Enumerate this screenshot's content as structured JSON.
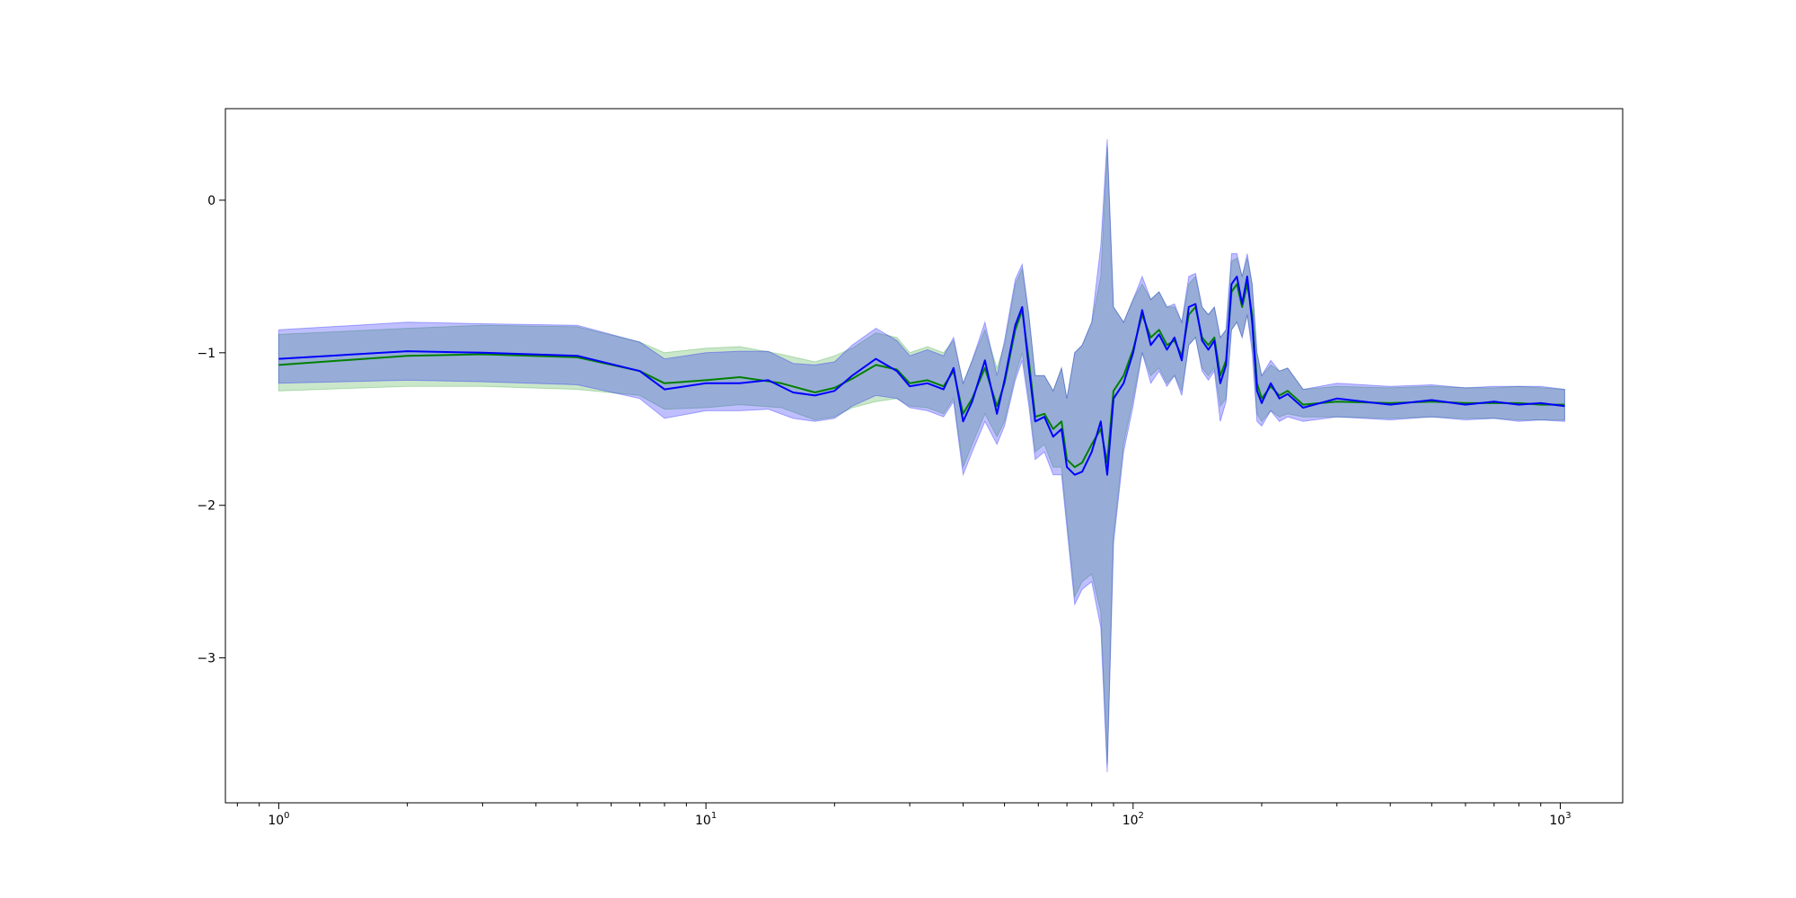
{
  "chart_data": {
    "type": "line",
    "title": "",
    "xlabel": "",
    "ylabel": "",
    "xscale": "log",
    "xlim": [
      0.75,
      1400
    ],
    "ylim": [
      -3.95,
      0.6
    ],
    "grid": false,
    "legend": "none",
    "x_ticks": [
      {
        "value": 1,
        "base": "10",
        "exp": "0"
      },
      {
        "value": 10,
        "base": "10",
        "exp": "1"
      },
      {
        "value": 100,
        "base": "10",
        "exp": "2"
      },
      {
        "value": 1000,
        "base": "10",
        "exp": "3"
      }
    ],
    "y_ticks": [
      {
        "value": 0,
        "label": "0"
      },
      {
        "value": -1,
        "label": "−1"
      },
      {
        "value": -2,
        "label": "−2"
      },
      {
        "value": -3,
        "label": "−3"
      }
    ],
    "series": [
      {
        "color": "#008000",
        "band_color": "#2ca02c",
        "points": [
          [
            1,
            -1.08,
            -1.25,
            -0.88
          ],
          [
            2,
            -1.02,
            -1.22,
            -0.84
          ],
          [
            3,
            -1.01,
            -1.22,
            -0.82
          ],
          [
            5,
            -1.03,
            -1.24,
            -0.83
          ],
          [
            7,
            -1.12,
            -1.28,
            -0.93
          ],
          [
            8,
            -1.2,
            -1.37,
            -1.0
          ],
          [
            10,
            -1.18,
            -1.36,
            -0.97
          ],
          [
            12,
            -1.16,
            -1.34,
            -0.96
          ],
          [
            15,
            -1.2,
            -1.36,
            -1.01
          ],
          [
            18,
            -1.26,
            -1.44,
            -1.06
          ],
          [
            20,
            -1.23,
            -1.42,
            -1.02
          ],
          [
            22,
            -1.17,
            -1.36,
            -0.97
          ],
          [
            25,
            -1.08,
            -1.32,
            -0.87
          ],
          [
            28,
            -1.11,
            -1.3,
            -0.9
          ],
          [
            30,
            -1.2,
            -1.35,
            -1.0
          ],
          [
            33,
            -1.18,
            -1.36,
            -0.96
          ],
          [
            36,
            -1.22,
            -1.4,
            -1.0
          ],
          [
            38,
            -1.12,
            -1.3,
            -0.92
          ],
          [
            40,
            -1.4,
            -1.75,
            -1.2
          ],
          [
            42,
            -1.3,
            -1.6,
            -1.05
          ],
          [
            45,
            -1.1,
            -1.4,
            -0.85
          ],
          [
            48,
            -1.35,
            -1.55,
            -1.1
          ],
          [
            50,
            -1.2,
            -1.45,
            -0.95
          ],
          [
            53,
            -0.85,
            -1.15,
            -0.55
          ],
          [
            55,
            -0.72,
            -1.0,
            -0.45
          ],
          [
            57,
            -1.05,
            -1.3,
            -0.75
          ],
          [
            59,
            -1.42,
            -1.65,
            -1.15
          ],
          [
            62,
            -1.4,
            -1.6,
            -1.15
          ],
          [
            65,
            -1.5,
            -1.75,
            -1.25
          ],
          [
            68,
            -1.45,
            -1.75,
            -1.1
          ],
          [
            70,
            -1.7,
            -2.1,
            -1.3
          ],
          [
            73,
            -1.75,
            -2.6,
            -1.0
          ],
          [
            76,
            -1.72,
            -2.5,
            -0.95
          ],
          [
            80,
            -1.6,
            -2.45,
            -0.8
          ],
          [
            84,
            -1.5,
            -2.7,
            -0.5
          ],
          [
            87,
            -1.72,
            -3.7,
            0.35
          ],
          [
            90,
            -1.25,
            -2.2,
            -0.7
          ],
          [
            95,
            -1.15,
            -1.6,
            -0.8
          ],
          [
            100,
            -0.98,
            -1.3,
            -0.65
          ],
          [
            105,
            -0.75,
            -1.0,
            -0.55
          ],
          [
            110,
            -0.9,
            -1.15,
            -0.65
          ],
          [
            115,
            -0.85,
            -1.1,
            -0.6
          ],
          [
            120,
            -0.95,
            -1.2,
            -0.7
          ],
          [
            125,
            -0.92,
            -1.15,
            -0.7
          ],
          [
            130,
            -1.02,
            -1.25,
            -0.8
          ],
          [
            135,
            -0.75,
            -0.95,
            -0.55
          ],
          [
            140,
            -0.7,
            -0.9,
            -0.5
          ],
          [
            145,
            -0.9,
            -1.1,
            -0.7
          ],
          [
            150,
            -0.95,
            -1.15,
            -0.75
          ],
          [
            155,
            -0.9,
            -1.1,
            -0.7
          ],
          [
            160,
            -1.15,
            -1.35,
            -0.9
          ],
          [
            165,
            -1.05,
            -1.3,
            -0.85
          ],
          [
            170,
            -0.6,
            -0.85,
            -0.4
          ],
          [
            175,
            -0.55,
            -0.8,
            -0.38
          ],
          [
            180,
            -0.7,
            -0.9,
            -0.5
          ],
          [
            185,
            -0.55,
            -0.75,
            -0.38
          ],
          [
            190,
            -0.75,
            -0.95,
            -0.55
          ],
          [
            195,
            -1.2,
            -1.4,
            -1.0
          ],
          [
            200,
            -1.3,
            -1.45,
            -1.15
          ],
          [
            210,
            -1.22,
            -1.38,
            -1.08
          ],
          [
            220,
            -1.28,
            -1.42,
            -1.12
          ],
          [
            230,
            -1.25,
            -1.4,
            -1.1
          ],
          [
            250,
            -1.34,
            -1.42,
            -1.24
          ],
          [
            300,
            -1.32,
            -1.42,
            -1.22
          ],
          [
            400,
            -1.33,
            -1.43,
            -1.23
          ],
          [
            500,
            -1.32,
            -1.42,
            -1.22
          ],
          [
            600,
            -1.33,
            -1.43,
            -1.23
          ],
          [
            700,
            -1.33,
            -1.43,
            -1.23
          ],
          [
            800,
            -1.33,
            -1.44,
            -1.22
          ],
          [
            900,
            -1.34,
            -1.44,
            -1.23
          ],
          [
            1024,
            -1.34,
            -1.44,
            -1.24
          ]
        ]
      },
      {
        "color": "#0000ff",
        "band_color": "#0000ff",
        "points": [
          [
            1,
            -1.04,
            -1.2,
            -0.85
          ],
          [
            2,
            -0.99,
            -1.18,
            -0.8
          ],
          [
            3,
            -1.0,
            -1.19,
            -0.81
          ],
          [
            5,
            -1.02,
            -1.21,
            -0.82
          ],
          [
            7,
            -1.12,
            -1.3,
            -0.93
          ],
          [
            8,
            -1.24,
            -1.43,
            -1.04
          ],
          [
            10,
            -1.2,
            -1.38,
            -1.0
          ],
          [
            12,
            -1.2,
            -1.38,
            -0.99
          ],
          [
            14,
            -1.18,
            -1.37,
            -0.99
          ],
          [
            16,
            -1.26,
            -1.43,
            -1.07
          ],
          [
            18,
            -1.28,
            -1.45,
            -1.08
          ],
          [
            20,
            -1.25,
            -1.43,
            -1.06
          ],
          [
            22,
            -1.15,
            -1.35,
            -0.95
          ],
          [
            25,
            -1.04,
            -1.28,
            -0.84
          ],
          [
            28,
            -1.12,
            -1.3,
            -0.92
          ],
          [
            30,
            -1.22,
            -1.36,
            -1.02
          ],
          [
            33,
            -1.2,
            -1.38,
            -0.98
          ],
          [
            36,
            -1.24,
            -1.42,
            -1.02
          ],
          [
            38,
            -1.1,
            -1.32,
            -0.9
          ],
          [
            40,
            -1.45,
            -1.8,
            -1.2
          ],
          [
            42,
            -1.32,
            -1.65,
            -1.05
          ],
          [
            45,
            -1.05,
            -1.45,
            -0.8
          ],
          [
            48,
            -1.4,
            -1.6,
            -1.15
          ],
          [
            50,
            -1.18,
            -1.48,
            -0.92
          ],
          [
            53,
            -0.82,
            -1.18,
            -0.52
          ],
          [
            55,
            -0.7,
            -1.05,
            -0.42
          ],
          [
            57,
            -1.1,
            -1.35,
            -0.75
          ],
          [
            59,
            -1.45,
            -1.7,
            -1.15
          ],
          [
            62,
            -1.42,
            -1.65,
            -1.15
          ],
          [
            65,
            -1.55,
            -1.8,
            -1.25
          ],
          [
            68,
            -1.5,
            -1.8,
            -1.1
          ],
          [
            70,
            -1.75,
            -2.15,
            -1.3
          ],
          [
            73,
            -1.8,
            -2.65,
            -1.0
          ],
          [
            76,
            -1.78,
            -2.55,
            -0.95
          ],
          [
            80,
            -1.65,
            -2.5,
            -0.8
          ],
          [
            84,
            -1.45,
            -2.8,
            -0.3
          ],
          [
            87,
            -1.8,
            -3.75,
            0.4
          ],
          [
            90,
            -1.3,
            -2.25,
            -0.7
          ],
          [
            95,
            -1.2,
            -1.65,
            -0.8
          ],
          [
            100,
            -1.0,
            -1.35,
            -0.65
          ],
          [
            105,
            -0.72,
            -1.0,
            -0.5
          ],
          [
            110,
            -0.95,
            -1.2,
            -0.65
          ],
          [
            115,
            -0.88,
            -1.12,
            -0.6
          ],
          [
            120,
            -0.98,
            -1.22,
            -0.7
          ],
          [
            125,
            -0.9,
            -1.15,
            -0.68
          ],
          [
            130,
            -1.05,
            -1.28,
            -0.8
          ],
          [
            135,
            -0.7,
            -0.95,
            -0.5
          ],
          [
            140,
            -0.68,
            -0.9,
            -0.48
          ],
          [
            145,
            -0.92,
            -1.12,
            -0.7
          ],
          [
            150,
            -0.98,
            -1.18,
            -0.75
          ],
          [
            155,
            -0.92,
            -1.12,
            -0.7
          ],
          [
            160,
            -1.2,
            -1.45,
            -0.9
          ],
          [
            165,
            -1.08,
            -1.32,
            -0.85
          ],
          [
            170,
            -0.55,
            -0.85,
            -0.35
          ],
          [
            175,
            -0.5,
            -0.8,
            -0.35
          ],
          [
            180,
            -0.68,
            -0.9,
            -0.5
          ],
          [
            185,
            -0.5,
            -0.75,
            -0.35
          ],
          [
            190,
            -0.8,
            -1.0,
            -0.55
          ],
          [
            195,
            -1.25,
            -1.45,
            -1.0
          ],
          [
            200,
            -1.33,
            -1.48,
            -1.15
          ],
          [
            210,
            -1.2,
            -1.38,
            -1.05
          ],
          [
            220,
            -1.3,
            -1.45,
            -1.12
          ],
          [
            230,
            -1.27,
            -1.42,
            -1.1
          ],
          [
            250,
            -1.36,
            -1.45,
            -1.24
          ],
          [
            300,
            -1.3,
            -1.42,
            -1.2
          ],
          [
            400,
            -1.34,
            -1.44,
            -1.22
          ],
          [
            500,
            -1.31,
            -1.42,
            -1.21
          ],
          [
            600,
            -1.34,
            -1.44,
            -1.23
          ],
          [
            700,
            -1.32,
            -1.43,
            -1.22
          ],
          [
            800,
            -1.34,
            -1.45,
            -1.22
          ],
          [
            900,
            -1.33,
            -1.44,
            -1.22
          ],
          [
            1024,
            -1.35,
            -1.45,
            -1.24
          ]
        ]
      }
    ]
  }
}
